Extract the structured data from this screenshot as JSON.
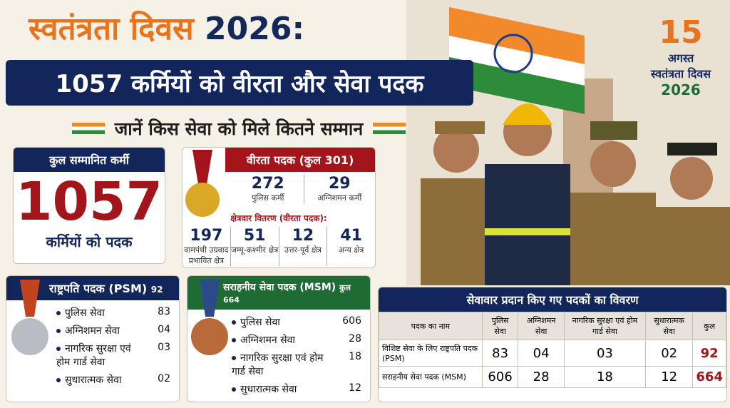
{
  "header": {
    "title_part1": "स्वतंत्रता दिवस",
    "title_part2": "2026:",
    "subtitle": "1057 कर्मियों को वीरता और सेवा पदक",
    "tagline": "जानें किस सेवा को मिले कितने सम्मान"
  },
  "badge": {
    "day": "15",
    "month": "अगस्त",
    "event": "स्वतंत्रता दिवस",
    "year": "2026"
  },
  "total": {
    "heading": "कुल सम्मानित कर्मी",
    "value": "1057",
    "caption": "कर्मियों को पदक"
  },
  "gallantry": {
    "heading": "वीरता पदक (कुल 301)",
    "items": [
      {
        "value": "272",
        "label": "पुलिस कर्मी"
      },
      {
        "value": "29",
        "label": "अग्निशमन कर्मी"
      }
    ],
    "regional_heading": "क्षेत्रवार वितरण (वीरता पदक):",
    "regions": [
      {
        "value": "197",
        "label": "वामपंथी उग्रवाद प्रभावित क्षेत्र"
      },
      {
        "value": "51",
        "label": "जम्मू-कश्मीर क्षेत्र"
      },
      {
        "value": "12",
        "label": "उत्तर-पूर्व क्षेत्र"
      },
      {
        "value": "41",
        "label": "अन्य क्षेत्र"
      }
    ]
  },
  "psm": {
    "heading": "राष्ट्रपति पदक (PSM)",
    "total": "92",
    "items": [
      {
        "label": "पुलिस सेवा",
        "value": "83"
      },
      {
        "label": "अग्निशमन सेवा",
        "value": "04"
      },
      {
        "label": "नागरिक सुरक्षा एवं होम गार्ड सेवा",
        "value": "03"
      },
      {
        "label": "सुधारात्मक सेवा",
        "value": "02"
      }
    ]
  },
  "msm": {
    "heading": "सराहनीय सेवा पदक (MSM)",
    "total": "कुल 664",
    "items": [
      {
        "label": "पुलिस सेवा",
        "value": "606"
      },
      {
        "label": "अग्निशमन सेवा",
        "value": "28"
      },
      {
        "label": "नागरिक सुरक्षा एवं होम गार्ड सेवा",
        "value": "18"
      },
      {
        "label": "सुधारात्मक सेवा",
        "value": "12"
      }
    ]
  },
  "table": {
    "title": "सेवावार प्रदान किए गए पदकों का विवरण",
    "columns": [
      "पदक का नाम",
      "पुलिस सेवा",
      "अग्निशमन सेवा",
      "नागरिक सुरक्षा एवं होम गार्ड सेवा",
      "सुधारात्मक सेवा",
      "कुल"
    ],
    "rows": [
      [
        "विशिष्ट सेवा के लिए राष्ट्रपति पदक (PSM)",
        "83",
        "04",
        "03",
        "02",
        "92"
      ],
      [
        "सराहनीय सेवा पदक (MSM)",
        "606",
        "28",
        "18",
        "12",
        "664"
      ]
    ]
  }
}
